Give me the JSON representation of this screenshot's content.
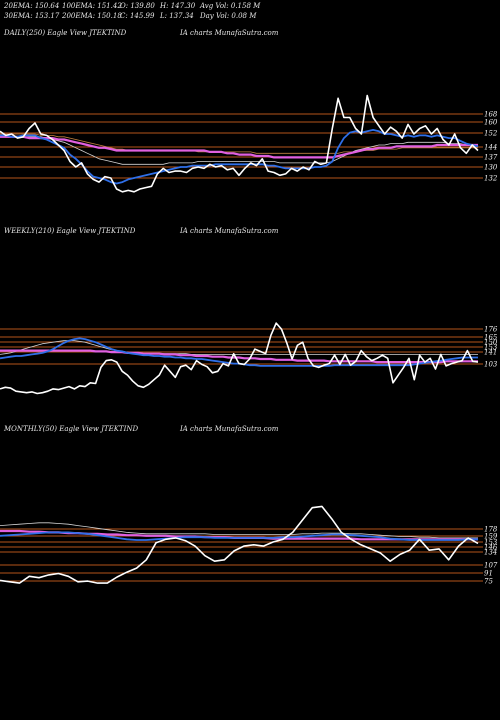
{
  "header": {
    "row1": [
      "20EMA: 150.64",
      "100EMA: 151.42",
      "O: 139.80",
      "H: 147.30",
      "Avg Vol: 0.158 M"
    ],
    "row2": [
      "30EMA: 153.17",
      "200EMA: 150.18",
      "C: 145.99",
      "L: 137.34",
      "Day Vol: 0.08  M"
    ]
  },
  "colors": {
    "background": "#000000",
    "price": "#ffffff",
    "level_lines": "#b4541a",
    "ema_short": "#2f6fe8",
    "ema_long": "#e060e0",
    "ema_mid": "#d4d4d4",
    "ema_long2": "#c08040"
  },
  "chart_data": [
    {
      "type": "line",
      "title_left": "DAILY(250) Eagle  View  JTEKTIND",
      "title_right": "IA charts MunafaSutra.com",
      "levels": [
        "168",
        "160",
        "152",
        "144",
        "137",
        "130",
        "132"
      ],
      "series": [
        {
          "role": "price",
          "values": [
            160,
            157,
            158,
            155,
            156,
            162,
            166,
            158,
            157,
            154,
            150,
            146,
            138,
            134,
            137,
            129,
            125,
            123,
            127,
            126,
            118,
            116,
            117,
            116,
            118,
            119,
            120,
            129,
            133,
            130,
            131,
            131,
            130,
            133,
            134,
            133,
            136,
            134,
            135,
            132,
            133,
            128,
            133,
            137,
            135,
            140,
            131,
            130,
            128,
            129,
            133,
            131,
            134,
            132,
            138,
            136,
            137,
            162,
            184,
            170,
            170,
            162,
            158,
            186,
            170,
            164,
            158,
            163,
            160,
            155,
            165,
            158,
            162,
            164,
            158,
            162,
            154,
            150,
            158,
            148,
            144,
            150,
            146
          ]
        },
        {
          "role": "ema-short",
          "values": [
            157,
            157,
            156,
            156,
            157,
            157,
            157,
            155,
            154,
            152,
            150,
            148,
            143,
            140,
            136,
            131,
            127,
            126,
            125,
            123,
            122,
            123,
            125,
            126,
            127,
            128,
            129,
            130,
            131,
            132,
            133,
            134,
            134,
            135,
            135,
            135,
            135,
            136,
            136,
            136,
            136,
            136,
            136,
            136,
            136,
            136,
            135,
            135,
            134,
            133,
            133,
            133,
            133,
            133,
            134,
            134,
            135,
            138,
            148,
            155,
            159,
            160,
            159,
            160,
            161,
            160,
            158,
            158,
            157,
            156,
            157,
            156,
            157,
            157,
            156,
            157,
            156,
            155,
            155,
            153,
            151,
            150,
            149
          ]
        },
        {
          "role": "ema-long",
          "values": [
            156,
            156,
            156,
            156,
            156,
            155,
            155,
            155,
            155,
            155,
            154,
            154,
            153,
            152,
            151,
            150,
            149,
            148,
            148,
            147,
            146,
            146,
            146,
            146,
            146,
            146,
            146,
            146,
            146,
            146,
            146,
            146,
            146,
            146,
            146,
            146,
            145,
            145,
            145,
            144,
            144,
            143,
            143,
            143,
            142,
            142,
            142,
            141,
            141,
            141,
            141,
            141,
            141,
            141,
            141,
            141,
            141,
            141,
            142,
            143,
            144,
            145,
            146,
            147,
            147,
            148,
            148,
            148,
            149,
            149,
            149,
            149,
            149,
            149,
            149,
            150,
            150,
            150,
            150,
            150,
            150,
            150,
            150
          ]
        },
        {
          "role": "ema-mid",
          "values": [
            156,
            156,
            156,
            156,
            156,
            156,
            156,
            156,
            155,
            154,
            153,
            152,
            150,
            148,
            146,
            144,
            142,
            140,
            139,
            138,
            137,
            136,
            136,
            136,
            136,
            136,
            136,
            136,
            136,
            137,
            137,
            137,
            137,
            137,
            138,
            138,
            138,
            138,
            138,
            138,
            138,
            138,
            138,
            138,
            138,
            138,
            138,
            138,
            137,
            137,
            137,
            137,
            137,
            137,
            137,
            137,
            137,
            138,
            140,
            142,
            144,
            146,
            147,
            148,
            149,
            150,
            150,
            151,
            151,
            151,
            152,
            152,
            152,
            152,
            152,
            152,
            152,
            151,
            151,
            151,
            150,
            150,
            149
          ]
        },
        {
          "role": "ema-long2",
          "values": [
            158,
            158,
            158,
            158,
            158,
            158,
            158,
            157,
            157,
            157,
            156,
            156,
            155,
            154,
            153,
            152,
            151,
            150,
            149,
            148,
            147,
            147,
            146,
            146,
            146,
            146,
            146,
            146,
            146,
            146,
            146,
            146,
            146,
            146,
            145,
            145,
            145,
            145,
            145,
            145,
            145,
            145,
            145,
            145,
            144,
            144,
            144,
            144,
            144,
            144,
            144,
            144,
            144,
            144,
            144,
            144,
            144,
            144,
            144,
            145,
            145,
            145,
            146,
            146,
            146,
            147,
            147,
            147,
            147,
            148,
            148,
            148,
            148,
            148,
            148,
            148,
            148,
            148,
            148,
            148,
            148,
            148,
            148
          ]
        }
      ]
    },
    {
      "type": "line",
      "title_left": "WEEKLY(210) Eagle  View  JTEKTIND",
      "title_right": "IA charts MunafaSutra.com",
      "levels": [
        "176",
        "165",
        "150",
        "153",
        "141",
        "103"
      ],
      "series": [
        {
          "role": "price",
          "values": [
            100,
            102,
            101,
            97,
            96,
            95,
            96,
            94,
            95,
            97,
            100,
            99,
            101,
            103,
            100,
            104,
            103,
            108,
            107,
            128,
            137,
            138,
            135,
            123,
            118,
            110,
            104,
            102,
            106,
            112,
            118,
            131,
            123,
            115,
            129,
            131,
            125,
            137,
            132,
            129,
            121,
            123,
            133,
            130,
            146,
            133,
            132,
            139,
            152,
            149,
            146,
            170,
            186,
            178,
            160,
            139,
            157,
            161,
            140,
            130,
            128,
            131,
            133,
            144,
            132,
            145,
            131,
            136,
            150,
            142,
            137,
            140,
            144,
            140,
            108,
            118,
            128,
            140,
            112,
            144,
            135,
            140,
            126,
            145,
            130,
            133,
            135,
            137,
            150,
            136,
            135
          ]
        },
        {
          "role": "ema-short",
          "values": [
            140,
            141,
            142,
            143,
            143,
            144,
            145,
            146,
            147,
            149,
            152,
            156,
            160,
            163,
            165,
            166,
            165,
            163,
            161,
            158,
            155,
            152,
            150,
            149,
            147,
            146,
            145,
            144,
            144,
            143,
            143,
            142,
            142,
            141,
            141,
            140,
            140,
            139,
            139,
            138,
            137,
            136,
            135,
            134,
            133,
            133,
            132,
            131,
            131,
            130,
            130,
            130,
            130,
            130,
            130,
            130,
            130,
            130,
            130,
            130,
            130,
            130,
            130,
            131,
            131,
            131,
            131,
            131,
            131,
            131,
            131,
            131,
            131,
            131,
            131,
            131,
            131,
            131,
            132,
            133,
            134,
            135,
            136,
            137,
            138,
            139,
            140,
            141,
            141,
            141,
            141
          ]
        },
        {
          "role": "ema-long",
          "values": [
            150,
            150,
            150,
            150,
            150,
            150,
            150,
            150,
            150,
            150,
            150,
            150,
            150,
            150,
            150,
            150,
            150,
            150,
            149,
            149,
            149,
            148,
            148,
            148,
            147,
            147,
            147,
            146,
            146,
            146,
            146,
            145,
            145,
            145,
            144,
            144,
            144,
            143,
            143,
            143,
            142,
            142,
            142,
            141,
            141,
            141,
            140,
            140,
            140,
            139,
            139,
            139,
            138,
            138,
            138,
            138,
            137,
            137,
            137,
            137,
            137,
            137,
            136,
            136,
            136,
            136,
            136,
            136,
            136,
            136,
            136,
            135,
            135,
            135,
            135,
            135,
            135,
            135,
            135,
            135,
            135,
            135,
            135,
            135,
            136,
            136,
            136,
            136,
            136,
            136,
            136
          ]
        },
        {
          "role": "ema-mid",
          "values": [
            145,
            146,
            147,
            149,
            151,
            153,
            155,
            157,
            159,
            160,
            161,
            162,
            163,
            163,
            163,
            162,
            161,
            159,
            157,
            155,
            153,
            151,
            150,
            149,
            148,
            147,
            147,
            146,
            146,
            146,
            146,
            146,
            146,
            146,
            146,
            146,
            145,
            145,
            145,
            145,
            145,
            145,
            145,
            145,
            145,
            145,
            145,
            145,
            145,
            145,
            145,
            145,
            145,
            145,
            145,
            145,
            145,
            145,
            145,
            145,
            145,
            145,
            145,
            145,
            145,
            145,
            145,
            145,
            145,
            145,
            145,
            145,
            145,
            145,
            145,
            145,
            145,
            145,
            145,
            145,
            145,
            145,
            145,
            145,
            145,
            145,
            145,
            145,
            145,
            145,
            145
          ]
        }
      ]
    },
    {
      "type": "line",
      "title_left": "MONTHLY(50) Eagle  View  JTEKTIND",
      "title_right": "IA charts MunafaSutra.com",
      "levels": [
        "178",
        "159",
        "153",
        "146",
        "134",
        "107",
        "91",
        "75"
      ],
      "series": [
        {
          "role": "price",
          "values": [
            80,
            78,
            76,
            86,
            84,
            88,
            90,
            86,
            78,
            79,
            76,
            76,
            85,
            92,
            98,
            110,
            135,
            140,
            142,
            138,
            130,
            116,
            108,
            110,
            123,
            130,
            132,
            130,
            136,
            140,
            150,
            168,
            186,
            188,
            170,
            150,
            140,
            132,
            126,
            120,
            108,
            118,
            124,
            140,
            124,
            126,
            110,
            130,
            142,
            134
          ]
        },
        {
          "role": "ema-short",
          "values": [
            145,
            146,
            147,
            148,
            149,
            150,
            150,
            150,
            149,
            148,
            146,
            144,
            142,
            140,
            139,
            139,
            140,
            141,
            142,
            143,
            143,
            143,
            142,
            142,
            142,
            142,
            142,
            142,
            142,
            143,
            143,
            144,
            145,
            146,
            147,
            147,
            146,
            145,
            144,
            143,
            141,
            140,
            139,
            139,
            139,
            139,
            139,
            139,
            140,
            140
          ]
        },
        {
          "role": "ema-long",
          "values": [
            152,
            152,
            152,
            151,
            151,
            150,
            150,
            149,
            149,
            148,
            148,
            147,
            147,
            146,
            146,
            145,
            145,
            145,
            144,
            144,
            144,
            143,
            143,
            143,
            142,
            142,
            142,
            142,
            141,
            141,
            141,
            141,
            141,
            141,
            141,
            141,
            141,
            140,
            140,
            140,
            140,
            140,
            140,
            140,
            140,
            140,
            140,
            140,
            140,
            140
          ]
        },
        {
          "role": "ema-mid",
          "values": [
            160,
            161,
            162,
            163,
            164,
            164,
            163,
            162,
            160,
            158,
            156,
            154,
            152,
            150,
            149,
            148,
            148,
            148,
            148,
            148,
            148,
            148,
            147,
            147,
            147,
            147,
            147,
            147,
            147,
            147,
            147,
            148,
            148,
            149,
            149,
            149,
            148,
            148,
            147,
            146,
            145,
            144,
            144,
            143,
            143,
            142,
            142,
            142,
            142,
            142
          ]
        }
      ]
    }
  ]
}
